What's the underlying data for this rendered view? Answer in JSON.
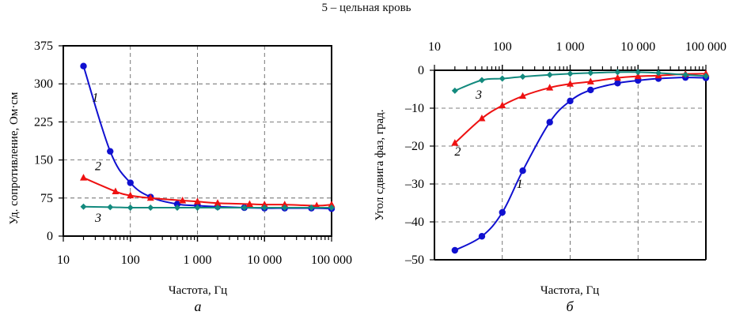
{
  "header": {
    "caption": "5 – цельная кровь"
  },
  "chart_data": [
    {
      "id": "a",
      "type": "line",
      "panel_label": "а",
      "title": "",
      "xlabel": "Частота, Гц",
      "ylabel": "Уд. сопротивление, Ом·см",
      "xscale": "log",
      "xlim": [
        10,
        100000
      ],
      "ylim": [
        0,
        375
      ],
      "x_tick_labels": [
        "10",
        "100",
        "1 000",
        "10 000",
        "100 000"
      ],
      "x_ticks": [
        10,
        100,
        1000,
        10000,
        100000
      ],
      "y_ticks": [
        0,
        75,
        150,
        225,
        300,
        375
      ],
      "y_tick_labels": [
        "0",
        "75",
        "150",
        "225",
        "300",
        "375"
      ],
      "x_axis_position": "bottom",
      "grid": true,
      "series": [
        {
          "name": "1",
          "color": "#1010d0",
          "marker": "circle",
          "x": [
            20,
            50,
            100,
            200,
            500,
            1000,
            2000,
            5000,
            10000,
            20000,
            50000,
            100000
          ],
          "y": [
            335,
            167,
            105,
            77,
            63,
            60,
            58,
            56,
            55,
            55,
            55,
            54
          ],
          "label_pos": [
            30,
            265
          ]
        },
        {
          "name": "2",
          "color": "#ee1111",
          "marker": "triangle",
          "x": [
            20,
            60,
            100,
            200,
            600,
            1000,
            2000,
            6000,
            10000,
            20000,
            60000,
            100000
          ],
          "y": [
            115,
            88,
            80,
            75,
            70,
            68,
            65,
            63,
            62,
            62,
            60,
            62
          ],
          "label_pos": [
            33,
            130
          ]
        },
        {
          "name": "3",
          "color": "#138a7e",
          "marker": "diamond",
          "x": [
            20,
            50,
            100,
            200,
            500,
            1000,
            2000,
            5000,
            10000,
            20000,
            50000,
            100000
          ],
          "y": [
            58,
            57,
            56,
            56,
            56,
            56,
            56,
            56,
            56,
            56,
            56,
            56
          ],
          "label_pos": [
            33,
            28
          ]
        }
      ]
    },
    {
      "id": "b",
      "type": "line",
      "panel_label": "б",
      "title": "",
      "xlabel": "Частота, Гц",
      "ylabel": "Угол сдвига фаз, град.",
      "xscale": "log",
      "xlim": [
        10,
        100000
      ],
      "ylim": [
        -50,
        0
      ],
      "x_tick_labels": [
        "10",
        "100",
        "1 000",
        "10 000",
        "100 000"
      ],
      "x_ticks": [
        10,
        100,
        1000,
        10000,
        100000
      ],
      "y_ticks": [
        -50,
        -40,
        -30,
        -20,
        -10,
        0
      ],
      "y_tick_labels": [
        "–50",
        "–40",
        "–30",
        "–20",
        "–10",
        "0"
      ],
      "x_axis_position": "top",
      "grid": true,
      "series": [
        {
          "name": "1",
          "color": "#1010d0",
          "marker": "circle",
          "x": [
            20,
            50,
            100,
            200,
            500,
            1000,
            2000,
            5000,
            10000,
            20000,
            50000,
            100000
          ],
          "y": [
            -47.5,
            -43.8,
            -37.5,
            -26.5,
            -13.7,
            -8.1,
            -5.2,
            -3.4,
            -2.7,
            -2.2,
            -1.9,
            -2.0
          ],
          "label_pos": [
            180,
            -31
          ]
        },
        {
          "name": "2",
          "color": "#ee1111",
          "marker": "triangle",
          "x": [
            20,
            50,
            100,
            200,
            500,
            1000,
            2000,
            5000,
            10000,
            20000,
            50000,
            100000
          ],
          "y": [
            -19.2,
            -12.7,
            -9.3,
            -6.8,
            -4.6,
            -3.6,
            -3.0,
            -2.0,
            -1.6,
            -1.4,
            -1.0,
            -0.9
          ],
          "label_pos": [
            22,
            -22.5
          ]
        },
        {
          "name": "3",
          "color": "#138a7e",
          "marker": "diamond",
          "x": [
            20,
            50,
            100,
            200,
            500,
            1000,
            2000,
            5000,
            10000,
            20000,
            50000,
            100000
          ],
          "y": [
            -5.4,
            -2.6,
            -2.2,
            -1.7,
            -1.2,
            -0.9,
            -0.7,
            -0.5,
            -0.5,
            -0.7,
            -1.2,
            -1.5
          ],
          "label_pos": [
            45,
            -7.5
          ]
        }
      ]
    }
  ]
}
